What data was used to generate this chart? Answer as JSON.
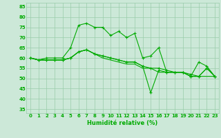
{
  "xlabel": "Humidité relative (%)",
  "background_color": "#cce8d8",
  "grid_color": "#99ccaa",
  "line_color": "#00aa00",
  "xlim": [
    -0.5,
    23.5
  ],
  "ylim": [
    33,
    87
  ],
  "yticks": [
    35,
    40,
    45,
    50,
    55,
    60,
    65,
    70,
    75,
    80,
    85
  ],
  "xtick_labels": [
    "0",
    "1",
    "2",
    "3",
    "4",
    "5",
    "6",
    "7",
    "8",
    "9",
    "10",
    "11",
    "12",
    "13",
    "14",
    "15",
    "16",
    "17",
    "18",
    "19",
    "20",
    "21",
    "22",
    "23"
  ],
  "line1_x": [
    0,
    1,
    2,
    3,
    4,
    5,
    6,
    7,
    8,
    9,
    10,
    11,
    12,
    13,
    14,
    15,
    16,
    17,
    18,
    19,
    20,
    21,
    22,
    23
  ],
  "line1_y": [
    60,
    59,
    60,
    60,
    60,
    65,
    76,
    77,
    75,
    75,
    71,
    73,
    70,
    72,
    60,
    61,
    65,
    53,
    53,
    53,
    51,
    58,
    56,
    51
  ],
  "line2_x": [
    0,
    1,
    2,
    3,
    4,
    5,
    6,
    7,
    8,
    9,
    10,
    11,
    12,
    13,
    14,
    15,
    16,
    17,
    18,
    19,
    20,
    21,
    22,
    23
  ],
  "line2_y": [
    60,
    59,
    59,
    59,
    59,
    60,
    63,
    64,
    62,
    61,
    60,
    59,
    58,
    58,
    56,
    55,
    55,
    54,
    53,
    53,
    52,
    51,
    55,
    51
  ],
  "line3_x": [
    0,
    1,
    2,
    3,
    4,
    5,
    6,
    7,
    8,
    9,
    10,
    11,
    12,
    13,
    14,
    15,
    16,
    17,
    18,
    19,
    20,
    21,
    22,
    23
  ],
  "line3_y": [
    60,
    59,
    59,
    59,
    59,
    60,
    63,
    64,
    62,
    61,
    60,
    59,
    58,
    58,
    56,
    43,
    54,
    53,
    53,
    53,
    51,
    51,
    55,
    51
  ],
  "line4_x": [
    0,
    1,
    2,
    3,
    4,
    5,
    6,
    7,
    8,
    9,
    10,
    11,
    12,
    13,
    14,
    15,
    16,
    17,
    18,
    19,
    20,
    21,
    22,
    23
  ],
  "line4_y": [
    60,
    59,
    59,
    59,
    59,
    60,
    63,
    64,
    62,
    60,
    59,
    58,
    57,
    57,
    55,
    55,
    53,
    53,
    53,
    53,
    51,
    51,
    51,
    51
  ],
  "marker": "+",
  "markersize": 3.5,
  "linewidth": 0.8,
  "tick_fontsize": 5.0,
  "xlabel_fontsize": 6.0
}
